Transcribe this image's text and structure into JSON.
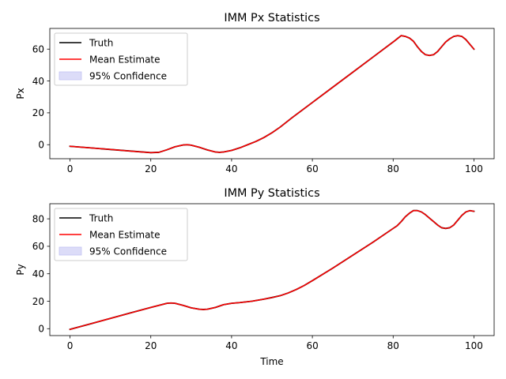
{
  "chart_data": [
    {
      "type": "line",
      "title": "IMM Px Statistics",
      "xlabel": "",
      "ylabel": "Px",
      "xlim": [
        -5,
        105
      ],
      "ylim": [
        -8.8,
        73
      ],
      "xticks": [
        0,
        20,
        40,
        60,
        80,
        100
      ],
      "yticks": [
        0,
        20,
        40,
        60
      ],
      "grid": false,
      "legend_position": "top-left",
      "series": [
        {
          "name": "Truth",
          "color": "#000000",
          "x": [
            0,
            5,
            10,
            15,
            20,
            22,
            24,
            26,
            28,
            29,
            30,
            32,
            34,
            36,
            37,
            38,
            40,
            42,
            44,
            46,
            48,
            50,
            52,
            55,
            60,
            65,
            70,
            75,
            80,
            81,
            82,
            83,
            84,
            85,
            86,
            87,
            88,
            89,
            90,
            91,
            92,
            93,
            94,
            95,
            96,
            97,
            98,
            99,
            100
          ],
          "y": [
            -1,
            -2,
            -3,
            -4,
            -5,
            -4.8,
            -3.2,
            -1.3,
            -0.2,
            0,
            -0.3,
            -1.6,
            -3.3,
            -4.6,
            -4.8,
            -4.6,
            -3.6,
            -2,
            0,
            2,
            4.5,
            7.5,
            11,
            17,
            26.5,
            36,
            45.5,
            55,
            64.5,
            66.5,
            68.5,
            68,
            67,
            65,
            61.5,
            58.5,
            56.5,
            56,
            56.5,
            58.5,
            61.5,
            64.5,
            66.5,
            68,
            68.5,
            68,
            66,
            63,
            60
          ]
        },
        {
          "name": "Mean Estimate",
          "color": "#ff0000",
          "x": [
            0,
            5,
            10,
            15,
            20,
            22,
            24,
            26,
            28,
            29,
            30,
            32,
            34,
            36,
            37,
            38,
            40,
            42,
            44,
            46,
            48,
            50,
            52,
            55,
            60,
            65,
            70,
            75,
            80,
            81,
            82,
            83,
            84,
            85,
            86,
            87,
            88,
            89,
            90,
            91,
            92,
            93,
            94,
            95,
            96,
            97,
            98,
            99,
            100
          ],
          "y": [
            -1,
            -2,
            -3,
            -4,
            -5,
            -4.8,
            -3.2,
            -1.3,
            -0.2,
            0,
            -0.3,
            -1.6,
            -3.3,
            -4.6,
            -4.8,
            -4.6,
            -3.6,
            -2,
            0,
            2,
            4.5,
            7.5,
            11,
            17,
            26.5,
            36,
            45.5,
            55,
            64.5,
            66.5,
            68.5,
            68,
            67,
            65,
            61.5,
            58.5,
            56.5,
            56,
            56.5,
            58.5,
            61.5,
            64.5,
            66.5,
            68,
            68.5,
            68,
            66,
            63,
            60
          ]
        },
        {
          "name": "95% Confidence",
          "color": "#dcdcf8",
          "kind": "band"
        }
      ]
    },
    {
      "type": "line",
      "title": "IMM Py Statistics",
      "xlabel": "Time",
      "ylabel": "Py",
      "xlim": [
        -5,
        105
      ],
      "ylim": [
        -5,
        91
      ],
      "xticks": [
        0,
        20,
        40,
        60,
        80,
        100
      ],
      "yticks": [
        0,
        20,
        40,
        60,
        80
      ],
      "grid": false,
      "legend_position": "top-left",
      "series": [
        {
          "name": "Truth",
          "color": "#000000",
          "x": [
            0,
            5,
            10,
            15,
            20,
            22,
            24,
            25,
            26,
            28,
            30,
            32,
            33,
            34,
            36,
            38,
            40,
            42,
            45,
            48,
            50,
            52,
            54,
            56,
            58,
            60,
            65,
            70,
            75,
            80,
            81,
            82,
            83,
            84,
            85,
            86,
            87,
            88,
            89,
            90,
            91,
            92,
            93,
            94,
            95,
            96,
            97,
            98,
            99,
            100
          ],
          "y": [
            -0.5,
            3.5,
            7.5,
            11.5,
            15.5,
            17,
            18.5,
            18.7,
            18.5,
            17,
            15.2,
            14.2,
            14,
            14.2,
            15.5,
            17.5,
            18.5,
            19,
            20,
            21.5,
            22.7,
            24,
            26,
            28.5,
            31.5,
            35,
            44,
            53.5,
            63,
            73,
            75,
            78,
            81.5,
            84,
            86,
            86,
            85,
            83,
            80.5,
            78,
            75.5,
            73.5,
            73,
            73.5,
            75.5,
            79,
            82.5,
            85,
            86,
            85.5
          ]
        },
        {
          "name": "Mean Estimate",
          "color": "#ff0000",
          "x": [
            0,
            5,
            10,
            15,
            20,
            22,
            24,
            25,
            26,
            28,
            30,
            32,
            33,
            34,
            36,
            38,
            40,
            42,
            45,
            48,
            50,
            52,
            54,
            56,
            58,
            60,
            65,
            70,
            75,
            80,
            81,
            82,
            83,
            84,
            85,
            86,
            87,
            88,
            89,
            90,
            91,
            92,
            93,
            94,
            95,
            96,
            97,
            98,
            99,
            100
          ],
          "y": [
            -0.5,
            3.5,
            7.5,
            11.5,
            15.5,
            17,
            18.5,
            18.7,
            18.5,
            17,
            15.2,
            14.2,
            14,
            14.2,
            15.5,
            17.5,
            18.5,
            19,
            20,
            21.5,
            22.7,
            24,
            26,
            28.5,
            31.5,
            35,
            44,
            53.5,
            63,
            73,
            75,
            78,
            81.5,
            84,
            86,
            86,
            85,
            83,
            80.5,
            78,
            75.5,
            73.5,
            73,
            73.5,
            75.5,
            79,
            82.5,
            85,
            86,
            85.5
          ]
        },
        {
          "name": "95% Confidence",
          "color": "#dcdcf8",
          "kind": "band"
        }
      ]
    }
  ]
}
